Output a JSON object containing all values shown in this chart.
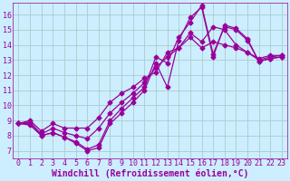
{
  "background_color": "#cceeff",
  "grid_color": "#aacccc",
  "line_color": "#990099",
  "marker": "D",
  "markersize": 2.5,
  "linewidth": 0.9,
  "xlim": [
    -0.5,
    23.5
  ],
  "ylim": [
    6.5,
    16.8
  ],
  "yticks": [
    7,
    8,
    9,
    10,
    11,
    12,
    13,
    14,
    15,
    16
  ],
  "xticks": [
    0,
    1,
    2,
    3,
    4,
    5,
    6,
    7,
    8,
    9,
    10,
    11,
    12,
    13,
    14,
    15,
    16,
    17,
    18,
    19,
    20,
    21,
    22,
    23
  ],
  "xlabel": "Windchill (Refroidissement éolien,°C)",
  "xlabel_fontsize": 7,
  "tick_fontsize": 6,
  "series": [
    [
      8.8,
      8.8,
      8.0,
      8.2,
      7.9,
      7.5,
      7.0,
      7.2,
      8.8,
      9.5,
      10.2,
      11.0,
      12.8,
      11.2,
      14.3,
      15.8,
      16.5,
      13.2,
      15.3,
      15.1,
      14.4,
      12.9,
      13.1,
      13.2
    ],
    [
      8.8,
      8.7,
      8.0,
      8.2,
      7.9,
      7.6,
      7.1,
      7.4,
      9.0,
      9.8,
      10.5,
      11.2,
      13.2,
      12.8,
      14.5,
      15.5,
      16.6,
      13.4,
      15.2,
      15.0,
      14.3,
      12.9,
      13.1,
      13.2
    ],
    [
      8.8,
      8.9,
      8.1,
      8.5,
      8.2,
      8.0,
      7.8,
      8.5,
      9.5,
      10.2,
      10.8,
      11.5,
      12.5,
      13.2,
      13.8,
      14.8,
      14.2,
      15.2,
      15.0,
      14.0,
      13.5,
      13.0,
      13.2,
      13.3
    ],
    [
      8.8,
      9.0,
      8.3,
      8.8,
      8.5,
      8.5,
      8.5,
      9.2,
      10.2,
      10.8,
      11.2,
      11.8,
      12.2,
      13.5,
      13.8,
      14.5,
      13.8,
      14.2,
      14.0,
      13.8,
      13.5,
      13.1,
      13.3,
      13.3
    ]
  ]
}
